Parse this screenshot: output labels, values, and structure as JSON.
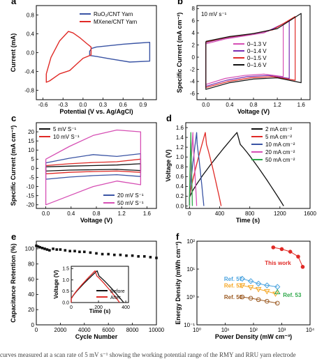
{
  "caption_fragment": "curves measured at a scan rate of 5 mV s⁻¹ showing the working potential range of the RMY and RRU yarn electrode",
  "colors": {
    "blue": "#3a54a4",
    "red": "#e02a26",
    "magenta": "#d64fb4",
    "purple": "#7a2db0",
    "black": "#111111",
    "green": "#2ea84a",
    "orange": "#f5a623",
    "brown": "#9b5a22",
    "lightblue": "#4aa3df"
  },
  "chart_data": [
    {
      "panel": "a",
      "type": "line",
      "xlabel": "Potential (V vs. Ag/AgCl)",
      "ylabel": "Current (mA)",
      "xlim": [
        -0.7,
        1.1
      ],
      "ylim": [
        -1,
        1
      ],
      "xticks": [
        -0.6,
        -0.3,
        0.0,
        0.3,
        0.6,
        0.9
      ],
      "xticklabels": [
        "-0.6",
        "-0.3",
        "0.0",
        "0.3",
        "0.6",
        "0.9"
      ],
      "yticks": [
        -0.8,
        -0.4,
        0.0,
        0.4,
        0.8
      ],
      "yticklabels": [
        "-0.8",
        "-0.4",
        "0.0",
        "0.4",
        "0.8"
      ],
      "legend_position": "top-right",
      "series": [
        {
          "name": "RuO₂/CNT Yarn",
          "color": "#3a54a4",
          "x": [
            0.1,
            0.1,
            0.13,
            0.2,
            0.4,
            0.6,
            0.8,
            1.0,
            1.0,
            0.7,
            0.4,
            0.2,
            0.1
          ],
          "y": [
            -0.06,
            0.03,
            0.09,
            0.12,
            0.15,
            0.18,
            0.2,
            0.22,
            -0.18,
            -0.2,
            -0.13,
            -0.08,
            -0.06
          ]
        },
        {
          "name": "MXene/CNT Yarn",
          "color": "#e02a26",
          "x": [
            -0.55,
            -0.48,
            -0.35,
            -0.22,
            -0.15,
            -0.05,
            0.05,
            0.12,
            0.12,
            0.0,
            -0.1,
            -0.2,
            -0.35,
            -0.5,
            -0.55,
            -0.55
          ],
          "y": [
            -0.45,
            -0.1,
            0.25,
            0.45,
            0.42,
            0.32,
            0.2,
            0.12,
            -0.05,
            -0.12,
            -0.25,
            -0.38,
            -0.45,
            -0.6,
            -0.63,
            -0.45
          ]
        }
      ]
    },
    {
      "panel": "b",
      "type": "line",
      "annotation": "10 mV s⁻¹",
      "xlabel": "Voltage (V)",
      "ylabel": "Specific Current (mA cm⁻²)",
      "xlim": [
        -0.15,
        1.75
      ],
      "ylim": [
        -7,
        8.5
      ],
      "xticks": [
        0.0,
        0.4,
        0.8,
        1.2,
        1.6
      ],
      "xticklabels": [
        "0.0",
        "0.4",
        "0.8",
        "1.2",
        "1.6"
      ],
      "yticks": [
        -6,
        -4,
        -2,
        0,
        2,
        4,
        6,
        8
      ],
      "yticklabels": [
        "-6",
        "-4",
        "-2",
        "0",
        "2",
        "4",
        "6",
        "8"
      ],
      "legend_position": "bottom-right",
      "series": [
        {
          "name": "0–1.3 V",
          "color": "#d64fb4",
          "xmax": 1.3,
          "upper": [
            2.2,
            3.0,
            3.5,
            4.0,
            5.5
          ],
          "lower": [
            -4.5,
            -3.5,
            -3.0,
            -2.8,
            -3.2
          ]
        },
        {
          "name": "0–1.4 V",
          "color": "#7a2db0",
          "xmax": 1.4,
          "upper": [
            2.4,
            3.2,
            3.7,
            4.3,
            6.0
          ],
          "lower": [
            -4.8,
            -3.8,
            -3.2,
            -3.0,
            -3.5
          ]
        },
        {
          "name": "0–1.5 V",
          "color": "#e02a26",
          "xmax": 1.5,
          "upper": [
            2.5,
            3.3,
            3.8,
            4.5,
            6.7
          ],
          "lower": [
            -5.0,
            -4.0,
            -3.4,
            -3.2,
            -3.8
          ]
        },
        {
          "name": "0–1.6 V",
          "color": "#111111",
          "xmax": 1.6,
          "upper": [
            2.6,
            3.4,
            3.9,
            4.7,
            7.2
          ],
          "lower": [
            -5.3,
            -4.2,
            -3.6,
            -3.4,
            -4.2
          ]
        }
      ]
    },
    {
      "panel": "c",
      "type": "line",
      "xlabel": "Voltage (V)",
      "ylabel": "Specific Current (mA cm⁻²)",
      "xlim": [
        -0.15,
        1.75
      ],
      "ylim": [
        -22,
        25
      ],
      "xticks": [
        0.0,
        0.4,
        0.8,
        1.2,
        1.6
      ],
      "xticklabels": [
        "0.0",
        "0.4",
        "0.8",
        "1.2",
        "1.6"
      ],
      "yticks": [
        -20,
        -15,
        -10,
        -5,
        0,
        5,
        10,
        15,
        20
      ],
      "yticklabels": [
        "-20",
        "-15",
        "-10",
        "-5",
        "0",
        "5",
        "10",
        "15",
        "20"
      ],
      "legend_entries": [
        {
          "name": "5 mV S⁻¹",
          "color": "#111111",
          "position": "top-left"
        },
        {
          "name": "10 mV S⁻¹",
          "color": "#e02a26",
          "position": "top-left"
        },
        {
          "name": "20 mV S⁻¹",
          "color": "#3a54a4",
          "position": "bottom-right"
        },
        {
          "name": "50 mV S⁻¹",
          "color": "#d64fb4",
          "position": "bottom-right"
        }
      ],
      "series": [
        {
          "name": "5 mV S⁻¹",
          "color": "#111111",
          "upper": [
            0.8,
            1.2,
            1.5,
            1.8,
            2.5
          ],
          "lower": [
            -1.5,
            -1.0,
            -0.8,
            -0.6,
            -1.2
          ]
        },
        {
          "name": "10 mV S⁻¹",
          "color": "#e02a26",
          "upper": [
            1.5,
            2.5,
            3.2,
            3.6,
            5.0
          ],
          "lower": [
            -3.0,
            -2.2,
            -1.8,
            -1.5,
            -2.2
          ]
        },
        {
          "name": "20 mV S⁻¹",
          "color": "#3a54a4",
          "upper": [
            3.0,
            5.5,
            7.5,
            6.5,
            8.0
          ],
          "lower": [
            -6.0,
            -4.8,
            -4.0,
            -3.5,
            -4.5
          ]
        },
        {
          "name": "50 mV S⁻¹",
          "color": "#d64fb4",
          "upper": [
            5.0,
            12.0,
            18.0,
            21.0,
            20.0
          ],
          "lower": [
            -20.0,
            -15.0,
            -10.0,
            -7.0,
            -9.0
          ]
        }
      ]
    },
    {
      "panel": "d",
      "type": "line",
      "xlabel": "Time (s)",
      "ylabel": "Voltage (V)",
      "xlim": [
        -50,
        1600
      ],
      "ylim": [
        -0.05,
        1.7
      ],
      "xticks": [
        0,
        400,
        800,
        1200,
        1600
      ],
      "xticklabels": [
        "0",
        "400",
        "800",
        "1200",
        "1600"
      ],
      "yticks": [
        0.0,
        0.2,
        0.4,
        0.6,
        0.8,
        1.0,
        1.2,
        1.4,
        1.6
      ],
      "yticklabels": [
        "0.0",
        "0.2",
        "0.4",
        "0.6",
        "0.8",
        "1.0",
        "1.2",
        "1.4",
        "1.6"
      ],
      "legend_position": "top-right",
      "series": [
        {
          "name": "2 mA cm⁻²",
          "color": "#111111",
          "t_charge": 630,
          "t_total": 1250
        },
        {
          "name": "5 mA cm⁻²",
          "color": "#e02a26",
          "t_charge": 210,
          "t_total": 420
        },
        {
          "name": "10 mA cm⁻²",
          "color": "#3a54a4",
          "t_charge": 95,
          "t_total": 190
        },
        {
          "name": "20 mA cm⁻²",
          "color": "#d64fb4",
          "t_charge": 45,
          "t_total": 95
        },
        {
          "name": "50 mA cm⁻²",
          "color": "#2ea84a",
          "t_charge": 18,
          "t_total": 38
        }
      ]
    },
    {
      "panel": "e",
      "type": "scatter",
      "xlabel": "Cycle Number",
      "ylabel": "Capacitance Retention (%)",
      "xlim": [
        0,
        10000
      ],
      "ylim": [
        0,
        110
      ],
      "xticks": [
        0,
        2000,
        4000,
        6000,
        8000,
        10000
      ],
      "xticklabels": [
        "0",
        "2000",
        "4000",
        "6000",
        "8000",
        "10000"
      ],
      "yticks": [
        0,
        20,
        40,
        60,
        80,
        100
      ],
      "yticklabels": [
        "0",
        "20",
        "40",
        "60",
        "80",
        "100"
      ],
      "x": [
        0,
        150,
        300,
        500,
        700,
        900,
        1100,
        1400,
        1700,
        2000,
        2400,
        2800,
        3200,
        3600,
        4000,
        4500,
        5000,
        5500,
        6000,
        6500,
        7000,
        7500,
        8000,
        8500,
        9000,
        9500,
        10000
      ],
      "y": [
        104,
        103,
        102,
        101,
        100,
        99,
        98,
        100,
        99,
        99,
        98,
        97,
        97,
        96,
        96,
        95,
        94,
        93,
        93,
        92,
        92,
        91,
        91,
        90,
        90,
        89,
        88
      ],
      "inset": {
        "xlabel": "Time (s)",
        "ylabel": "Voltage (V)",
        "xlim": [
          0,
          420
        ],
        "ylim": [
          0,
          1.6
        ],
        "xticks": [
          0,
          200,
          400
        ],
        "xticklabels": [
          "0",
          "200",
          "400"
        ],
        "yticks": [
          0.0,
          0.5,
          1.0,
          1.5
        ],
        "yticklabels": [
          "0.0",
          "0.5",
          "1.0",
          "1.5"
        ],
        "series": [
          {
            "name": "Before",
            "color": "#111111",
            "t_charge": 190,
            "t_total": 385
          },
          {
            "name": "After",
            "color": "#e02a26",
            "t_charge": 175,
            "t_total": 355
          }
        ]
      }
    },
    {
      "panel": "f",
      "type": "scatter",
      "xlabel": "Power Density (mW cm⁻³)",
      "ylabel": "Energy Density (mWh cm⁻³)",
      "xscale": "log",
      "yscale": "log",
      "xlim": [
        1,
        10000
      ],
      "ylim": [
        0.1,
        100
      ],
      "xticks": [
        1,
        10,
        100,
        1000,
        10000
      ],
      "xticklabels": [
        "10⁰",
        "10¹",
        "10²",
        "10³",
        "10⁴"
      ],
      "yticks": [
        0.1,
        1,
        10,
        100
      ],
      "yticklabels": [
        "10⁻¹",
        "10⁰",
        "10¹",
        "10²"
      ],
      "series": [
        {
          "name": "This work",
          "color": "#e02a26",
          "x": [
            500,
            1000,
            2000,
            3800,
            5500
          ],
          "y": [
            60,
            52,
            42,
            28,
            12
          ]
        },
        {
          "name": "Ref. 57",
          "color": "#4aa3df",
          "x": [
            40,
            80,
            150,
            300,
            700
          ],
          "y": [
            4.5,
            3.7,
            3.0,
            2.6,
            2.3
          ]
        },
        {
          "name": "Ref. 52",
          "color": "#f5a623",
          "x": [
            40,
            80,
            150,
            300,
            600
          ],
          "y": [
            2.6,
            2.2,
            1.9,
            1.6,
            1.3
          ]
        },
        {
          "name": "Ref. 50",
          "color": "#9b5a22",
          "x": [
            40,
            80,
            150,
            300,
            700
          ],
          "y": [
            1.0,
            0.9,
            0.8,
            0.7,
            0.6
          ]
        },
        {
          "name": "Ref. 53",
          "color": "#2ea84a",
          "x": [
            700
          ],
          "y": [
            1.5
          ]
        }
      ]
    }
  ]
}
